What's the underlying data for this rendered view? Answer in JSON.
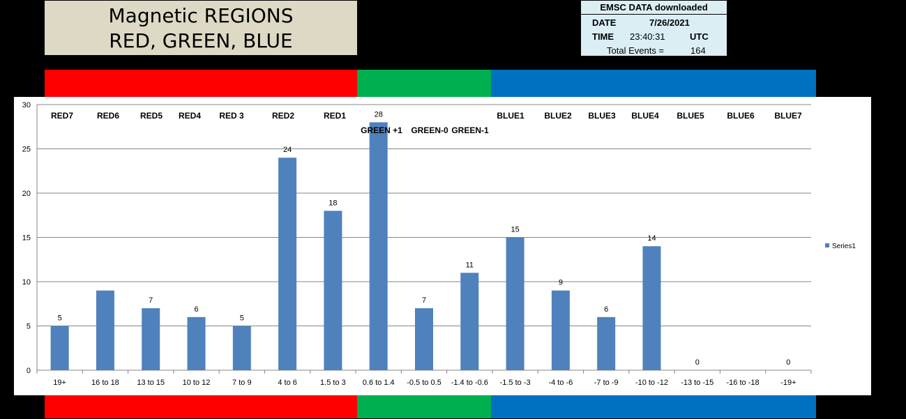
{
  "title": {
    "line1": "Magnetic REGIONS",
    "line2": "RED, GREEN, BLUE"
  },
  "info": {
    "header": "EMSC DATA downloaded",
    "date_label": "DATE",
    "date_value": "7/26/2021",
    "time_label": "TIME",
    "time_value": "23:40:31",
    "time_unit": "UTC",
    "total_label": "Total Events =",
    "total_value": "164"
  },
  "bands": {
    "red_color": "#ff0000",
    "green_color": "#00b050",
    "blue_color": "#0070c0"
  },
  "chart_data": {
    "type": "bar",
    "categories": [
      "19+",
      "16 to 18",
      "13 to 15",
      "10 to 12",
      "7 to 9",
      "4 to 6",
      "1.5 to 3",
      "0.6 to 1.4",
      "-0.5 to 0.5",
      "-1.4 to -0.6",
      "-1.5 to -3",
      "-4 to -6",
      "-7 to -9",
      "-10 to -12",
      "-13 to -15",
      "-16 to -18",
      "-19+"
    ],
    "series": [
      {
        "name": "Series1",
        "color": "#4f81bd",
        "values": [
          5,
          9,
          7,
          6,
          5,
          24,
          18,
          28,
          7,
          11,
          15,
          9,
          6,
          14,
          0,
          null,
          0
        ],
        "data_labels": [
          "5",
          "",
          "7",
          "6",
          "5",
          "24",
          "18",
          "28",
          "7",
          "11",
          "15",
          "9",
          "6",
          "14",
          "0",
          "",
          "0"
        ]
      }
    ],
    "ylim": [
      0,
      30
    ],
    "yticks": [
      "0",
      "5",
      "10",
      "15",
      "20",
      "25",
      "30"
    ],
    "region_labels": [
      "RED7",
      "RED6",
      "RED5",
      "RED4",
      "RED 3",
      "RED2",
      "RED1",
      "GREEN +1",
      "GREEN-0",
      "GREEN-1",
      "BLUE1",
      "BLUE2",
      "BLUE3",
      "BLUE4",
      "BLUE5",
      "BLUE6",
      "BLUE7"
    ],
    "grid": true,
    "legend": "right"
  }
}
